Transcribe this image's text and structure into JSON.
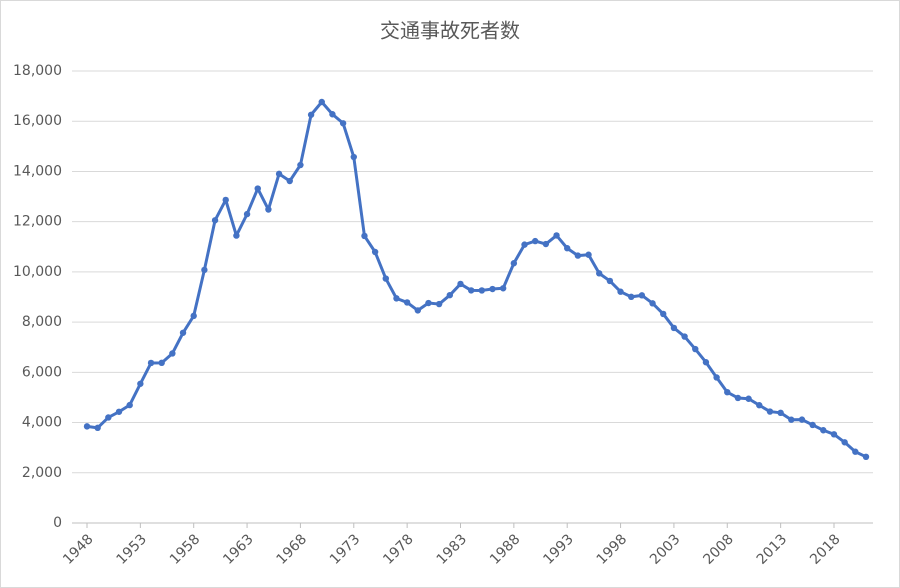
{
  "chart_data": {
    "type": "line",
    "title": "交通事故死者数",
    "x": [
      1948,
      1949,
      1950,
      1951,
      1952,
      1953,
      1954,
      1955,
      1956,
      1957,
      1958,
      1959,
      1960,
      1961,
      1962,
      1963,
      1964,
      1965,
      1966,
      1967,
      1968,
      1969,
      1970,
      1971,
      1972,
      1973,
      1974,
      1975,
      1976,
      1977,
      1978,
      1979,
      1980,
      1981,
      1982,
      1983,
      1984,
      1985,
      1986,
      1987,
      1988,
      1989,
      1990,
      1991,
      1992,
      1993,
      1994,
      1995,
      1996,
      1997,
      1998,
      1999,
      2000,
      2001,
      2002,
      2003,
      2004,
      2005,
      2006,
      2007,
      2008,
      2009,
      2010,
      2011,
      2012,
      2013,
      2014,
      2015,
      2016,
      2017,
      2018,
      2019,
      2020,
      2021
    ],
    "series": [
      {
        "color": "#4472c4",
        "values": [
          3848,
          3790,
          4202,
          4429,
          4696,
          5544,
          6374,
          6379,
          6751,
          7575,
          8248,
          10079,
          12055,
          12865,
          11445,
          12301,
          13318,
          12484,
          13904,
          13618,
          14256,
          16257,
          16765,
          16278,
          15918,
          14574,
          11432,
          10792,
          9734,
          8945,
          8783,
          8466,
          8760,
          8719,
          9073,
          9520,
          9262,
          9261,
          9317,
          9347,
          10344,
          11086,
          11227,
          11109,
          11452,
          10942,
          10649,
          10684,
          9942,
          9640,
          9211,
          9006,
          9066,
          8747,
          8326,
          7768,
          7425,
          6927,
          6403,
          5796,
          5209,
          4979,
          4948,
          4691,
          4438,
          4388,
          4113,
          4117,
          3904,
          3694,
          3532,
          3215,
          2839,
          2636
        ]
      }
    ],
    "xlim": [
      1948,
      2021
    ],
    "xticks": [
      1948,
      1953,
      1958,
      1963,
      1968,
      1973,
      1978,
      1983,
      1988,
      1993,
      1998,
      2003,
      2008,
      2013,
      2018
    ],
    "ylim": [
      0,
      18000
    ],
    "yticks": [
      0,
      {
        "value": 2000,
        "label": "2,000"
      },
      {
        "value": 4000,
        "label": "4,000"
      },
      {
        "value": 6000,
        "label": "6,000"
      },
      {
        "value": 8000,
        "label": "8,000"
      },
      {
        "value": 10000,
        "label": "10,000"
      },
      {
        "value": 12000,
        "label": "12,000"
      },
      {
        "value": 14000,
        "label": "14,000"
      },
      {
        "value": 16000,
        "label": "16,000"
      },
      {
        "value": 18000,
        "label": "18,000"
      }
    ],
    "grid": true
  }
}
